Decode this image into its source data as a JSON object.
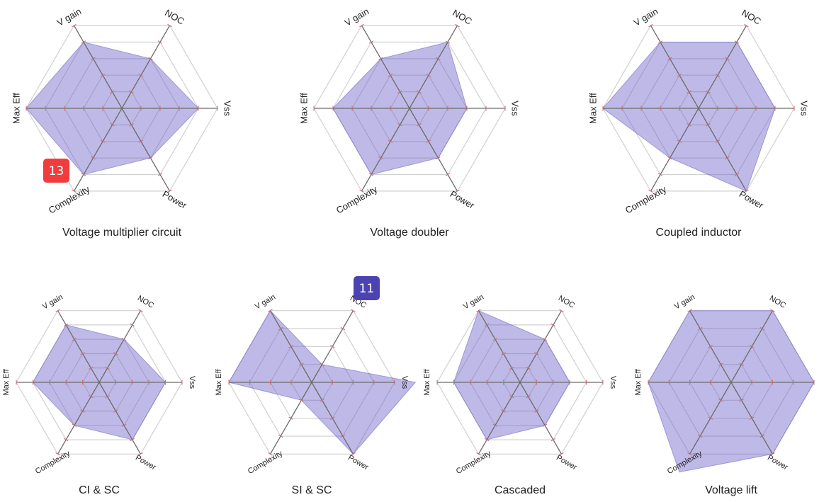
{
  "colors": {
    "area": "#6e64c8",
    "grid": "#d0d0d0",
    "spoke": "#6b6b6b",
    "tick": "#d46a6a",
    "badge_red": "#f03c3c",
    "badge_blue": "#4b44b0"
  },
  "badges": [
    {
      "label": "13",
      "color": "#f03c3c"
    },
    {
      "label": "11",
      "color": "#4b44b0"
    }
  ],
  "chart_data": [
    {
      "type": "radar",
      "title": "Voltage multiplier circuit",
      "axes": [
        "V gain",
        "NOC",
        "Vss",
        "Power",
        "Complexity",
        "Max Eff"
      ],
      "values": [
        4,
        3,
        4,
        3,
        4,
        5
      ],
      "rlim": [
        0,
        5
      ]
    },
    {
      "type": "radar",
      "title": "Voltage doubler",
      "axes": [
        "V gain",
        "NOC",
        "Vss",
        "Power",
        "Complexity",
        "Max Eff"
      ],
      "values": [
        3,
        4,
        3,
        3,
        4,
        4
      ],
      "rlim": [
        0,
        5
      ]
    },
    {
      "type": "radar",
      "title": "Coupled inductor",
      "axes": [
        "V gain",
        "NOC",
        "Vss",
        "Power",
        "Complexity",
        "Max Eff"
      ],
      "values": [
        4,
        4,
        4,
        5,
        3,
        5
      ],
      "rlim": [
        0,
        5
      ]
    },
    {
      "type": "radar",
      "title": "CI & SC",
      "axes": [
        "V gain",
        "NOC",
        "Vss",
        "Power",
        "Complexity",
        "Max Eff"
      ],
      "values": [
        4,
        3,
        4,
        4,
        3,
        4
      ],
      "rlim": [
        0,
        5
      ]
    },
    {
      "type": "radar",
      "title": "SI & SC",
      "axes": [
        "V gain",
        "NOC",
        "Vss",
        "Power",
        "Complexity",
        "Max Eff"
      ],
      "values": [
        4,
        1,
        5,
        4,
        1,
        4
      ],
      "rlim": [
        0,
        4
      ]
    },
    {
      "type": "radar",
      "title": "Cascaded",
      "axes": [
        "V gain",
        "NOC",
        "Vss",
        "Power",
        "Complexity",
        "Max Eff"
      ],
      "values": [
        5,
        3,
        3,
        3,
        4,
        4
      ],
      "rlim": [
        0,
        5
      ]
    },
    {
      "type": "radar",
      "title": "Voltage lift",
      "axes": [
        "V gain",
        "NOC",
        "Vss",
        "Power",
        "Complexity",
        "Max Eff"
      ],
      "values": [
        4,
        4,
        4,
        4,
        5,
        4
      ],
      "rlim": [
        0,
        4
      ]
    }
  ]
}
